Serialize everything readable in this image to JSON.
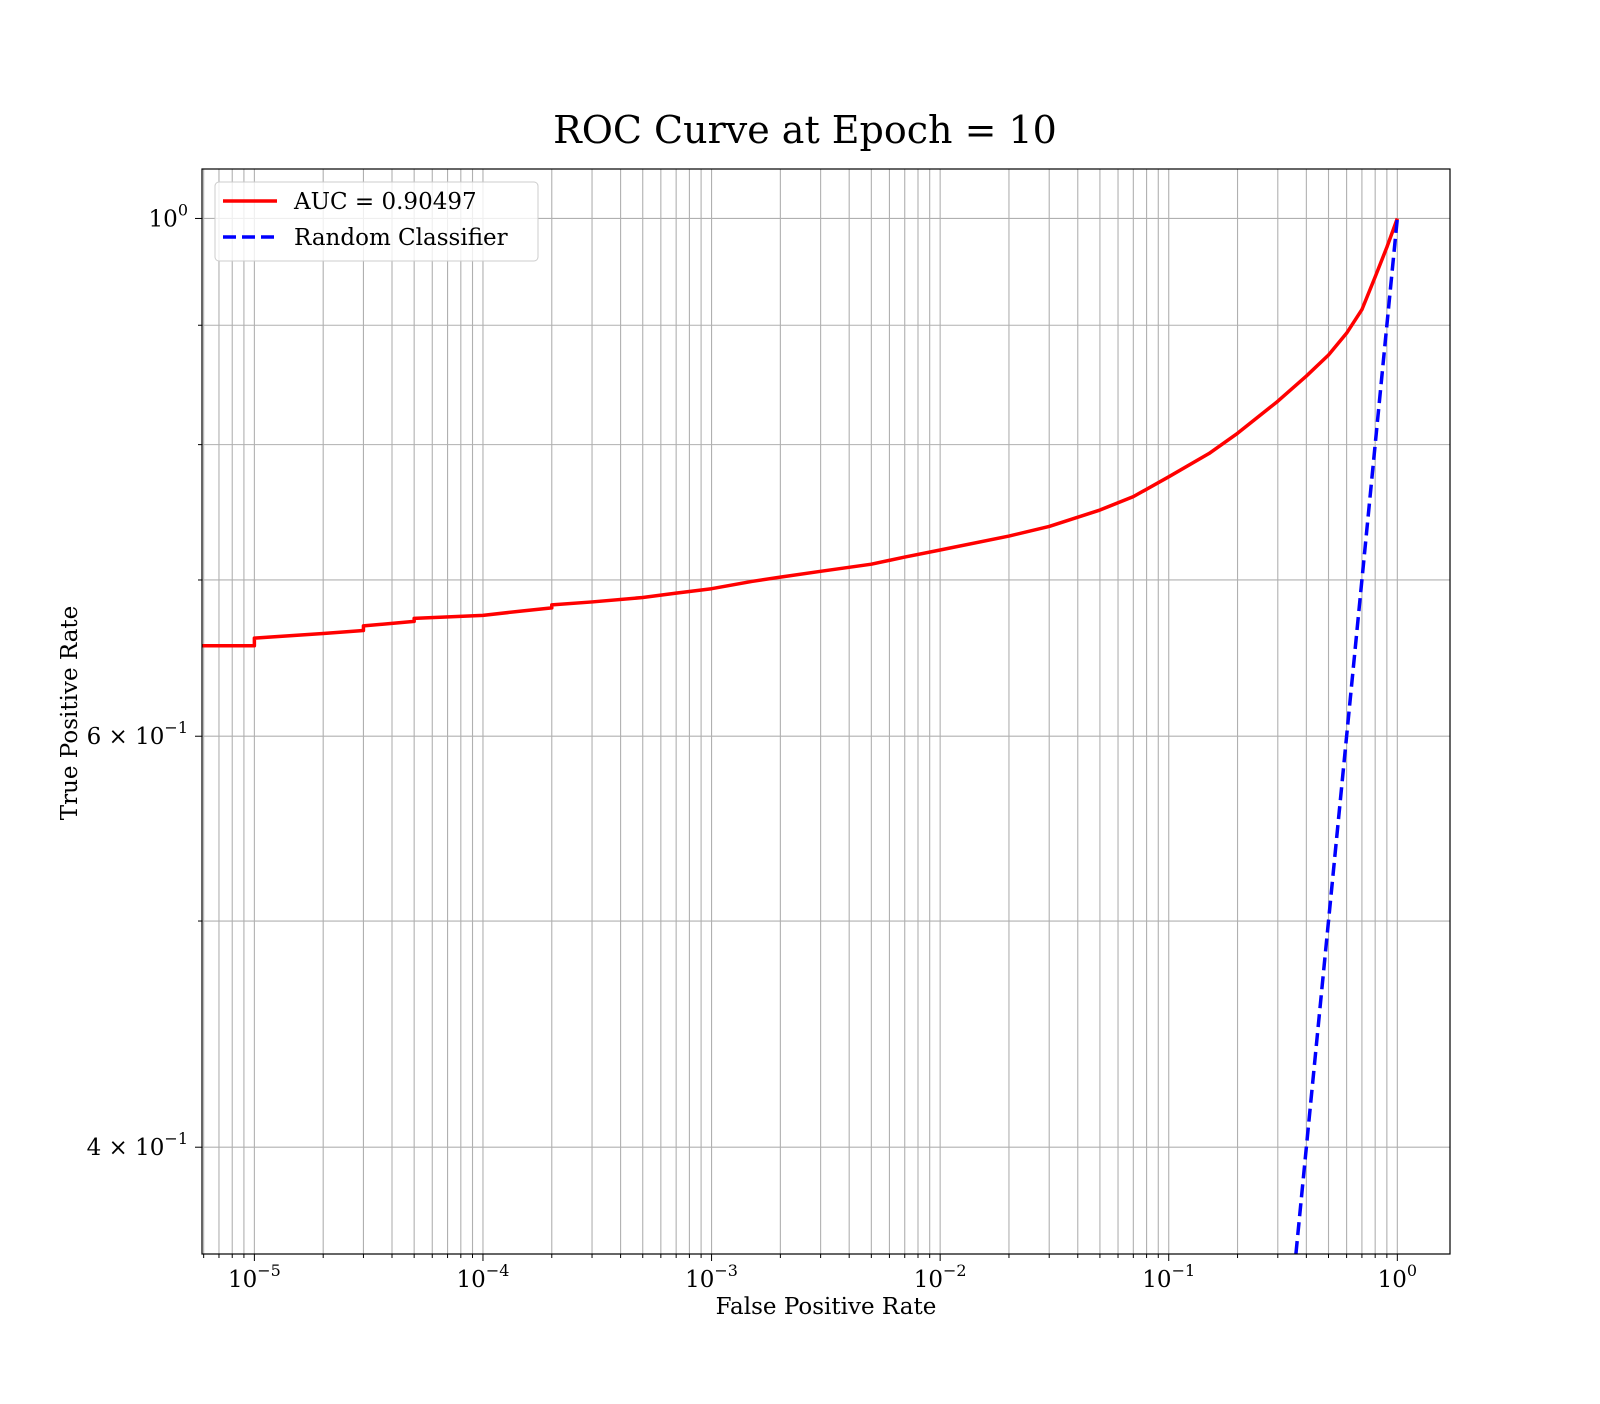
{
  "chart_data": {
    "type": "line",
    "title": "ROC Curve at Epoch = 10",
    "xlabel": "False Positive Rate",
    "ylabel": "True Positive Rate",
    "xscale": "log",
    "yscale": "log",
    "xlim": [
      5.9e-06,
      1.7
    ],
    "ylim": [
      0.36,
      1.05
    ],
    "grid": true,
    "legend_position": "top-left",
    "x_ticks": [
      {
        "base": "10",
        "exp": "−5"
      },
      {
        "base": "10",
        "exp": "−4"
      },
      {
        "base": "10",
        "exp": "−3"
      },
      {
        "base": "10",
        "exp": "−2"
      },
      {
        "base": "10",
        "exp": "−1"
      },
      {
        "base": "10",
        "exp": "0"
      }
    ],
    "y_ticks": [
      {
        "text": "10",
        "exp": "0"
      },
      {
        "text": "6 × 10",
        "exp": "−1"
      },
      {
        "text": "4 × 10",
        "exp": "−1"
      }
    ],
    "series": [
      {
        "name": "AUC = 0.90497",
        "color": "#ff0000",
        "style": "solid",
        "points": [
          [
            5.9e-06,
            0.656
          ],
          [
            1e-05,
            0.656
          ],
          [
            1e-05,
            0.661
          ],
          [
            2e-05,
            0.664
          ],
          [
            3e-05,
            0.666
          ],
          [
            3e-05,
            0.669
          ],
          [
            5e-05,
            0.672
          ],
          [
            5e-05,
            0.674
          ],
          [
            0.0001,
            0.676
          ],
          [
            0.00015,
            0.679
          ],
          [
            0.0002,
            0.681
          ],
          [
            0.0002,
            0.683
          ],
          [
            0.0003,
            0.685
          ],
          [
            0.0005,
            0.688
          ],
          [
            0.0007,
            0.691
          ],
          [
            0.001,
            0.694
          ],
          [
            0.0015,
            0.699
          ],
          [
            0.002,
            0.702
          ],
          [
            0.003,
            0.706
          ],
          [
            0.005,
            0.711
          ],
          [
            0.007,
            0.716
          ],
          [
            0.01,
            0.721
          ],
          [
            0.02,
            0.731
          ],
          [
            0.03,
            0.738
          ],
          [
            0.05,
            0.75
          ],
          [
            0.07,
            0.76
          ],
          [
            0.1,
            0.775
          ],
          [
            0.15,
            0.793
          ],
          [
            0.2,
            0.809
          ],
          [
            0.3,
            0.835
          ],
          [
            0.4,
            0.856
          ],
          [
            0.5,
            0.874
          ],
          [
            0.6,
            0.893
          ],
          [
            0.7,
            0.914
          ],
          [
            0.8,
            0.944
          ],
          [
            0.9,
            0.972
          ],
          [
            1.0,
            1.0
          ]
        ]
      },
      {
        "name": "Random Classifier",
        "color": "#0000ff",
        "style": "dashed",
        "points": [
          [
            0.36,
            0.36
          ],
          [
            1.0,
            1.0
          ]
        ]
      }
    ]
  }
}
